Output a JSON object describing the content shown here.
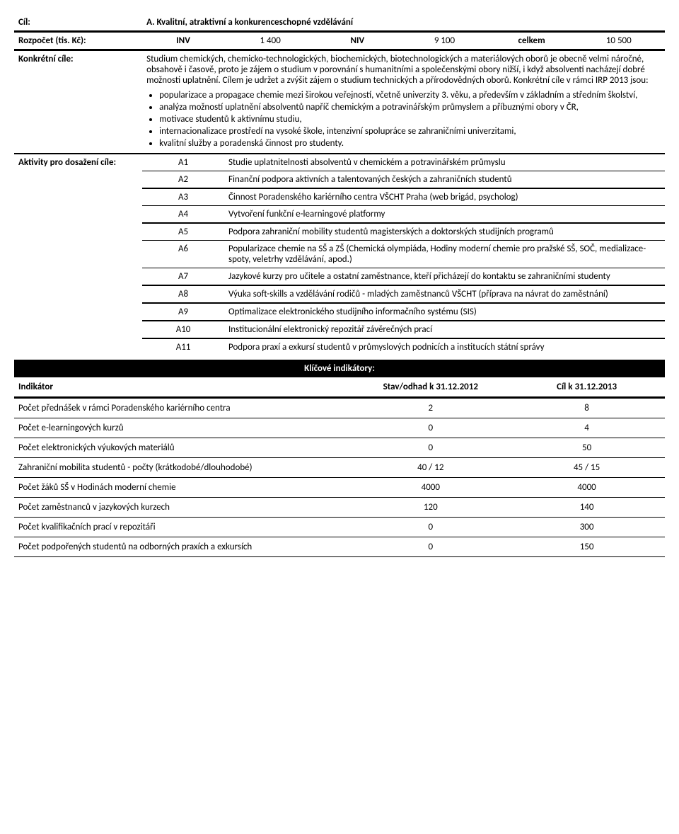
{
  "header": {
    "cil_label": "Cíl:",
    "cil_value": "A. Kvalitní, atraktivní a konkurenceschopné vzdělávání",
    "rozpocet_label": "Rozpočet (tis. Kč):",
    "inv_label": "INV",
    "inv_value": "1 400",
    "niv_label": "NIV",
    "niv_value": "9 100",
    "celkem_label": "celkem",
    "celkem_value": "10 500",
    "konkretni_label": "Konkrétní cíle:",
    "intro": "Studium chemických, chemicko-technologických, biochemických, biotechnologických a materiálových oborů je obecně velmi náročné, obsahově i časově, proto je zájem o studium v porovnání s humanitními a společenskými obory nižší, i když absolventi nacházejí dobré možnosti uplatnění. Cílem je udržet a zvýšit zájem o studium technických a přírodovědných oborů. Konkrétní cíle v rámci IRP 2013 jsou:",
    "bullets": [
      "popularizace a propagace chemie mezi širokou veřejností, včetně univerzity 3. věku, a především v základním a středním školství,",
      "analýza možností uplatnění absolventů napříč chemickým a potravinářským průmyslem a příbuznými obory v ČR,",
      "motivace studentů k aktivnímu studiu,",
      "internacionalizace prostředí na vysoké škole, intenzivní spolupráce se zahraničními univerzitami,",
      "kvalitní služby a poradenská činnost pro studenty."
    ],
    "aktivity_label": "Aktivity pro dosažení cíle:"
  },
  "activities": [
    {
      "code": "A1",
      "text": "Studie uplatnitelnosti absolventů v chemickém a potravinářském průmyslu"
    },
    {
      "code": "A2",
      "text": "Finanční podpora aktivních a talentovaných českých a zahraničních studentů"
    },
    {
      "code": "A3",
      "text": "Činnost Poradenského kariérního centra VŠCHT Praha (web brigád, psycholog)"
    },
    {
      "code": "A4",
      "text": "Vytvoření funkční e-learningové platformy"
    },
    {
      "code": "A5",
      "text": "Podpora zahraniční mobility studentů magisterských a doktorských studijních programů"
    },
    {
      "code": "A6",
      "text": "Popularizace chemie na SŠ a ZŠ (Chemická olympiáda, Hodiny moderní chemie pro pražské SŠ, SOČ, medializace-spoty, veletrhy vzdělávání, apod.)"
    },
    {
      "code": "A7",
      "text": "Jazykové kurzy pro učitele a ostatní zaměstnance, kteří přicházejí do kontaktu se zahraničními studenty"
    },
    {
      "code": "A8",
      "text": "Výuka soft-skills a vzdělávání rodičů - mladých zaměstnanců VŠCHT (příprava na návrat do zaměstnání)"
    },
    {
      "code": "A9",
      "text": "Optimalizace elektronického studijního informačního systému (SIS)"
    },
    {
      "code": "A10",
      "text": "Institucionální elektronický repozitář závěrečných prací"
    },
    {
      "code": "A11",
      "text": "Podpora praxí a exkursí studentů v průmyslových podnicích a institucích státní správy"
    }
  ],
  "indicators": {
    "section_title": "Klíčové indikátory:",
    "col_name": "Indikátor",
    "col_v1": "Stav/odhad k 31.12.2012",
    "col_v2": "Cíl k 31.12.2013",
    "rows": [
      {
        "name": "Počet přednášek v rámci Poradenského kariérního centra",
        "v1": "2",
        "v2": "8"
      },
      {
        "name": "Počet e-learningových kurzů",
        "v1": "0",
        "v2": "4"
      },
      {
        "name": "Počet elektronických výukových materiálů",
        "v1": "0",
        "v2": "50"
      },
      {
        "name": "Zahraniční mobilita studentů - počty (krátkodobé/dlouhodobé)",
        "v1": "40 / 12",
        "v2": "45 / 15"
      },
      {
        "name": "Počet žáků SŠ v Hodinách moderní chemie",
        "v1": "4000",
        "v2": "4000"
      },
      {
        "name": "Počet zaměstnanců v jazykových kurzech",
        "v1": "120",
        "v2": "140"
      },
      {
        "name": "Počet kvalifikačních prací v repozitáři",
        "v1": "0",
        "v2": "300"
      },
      {
        "name": "Počet podpořených studentů na odborných praxích a exkursích",
        "v1": "0",
        "v2": "150"
      }
    ]
  }
}
